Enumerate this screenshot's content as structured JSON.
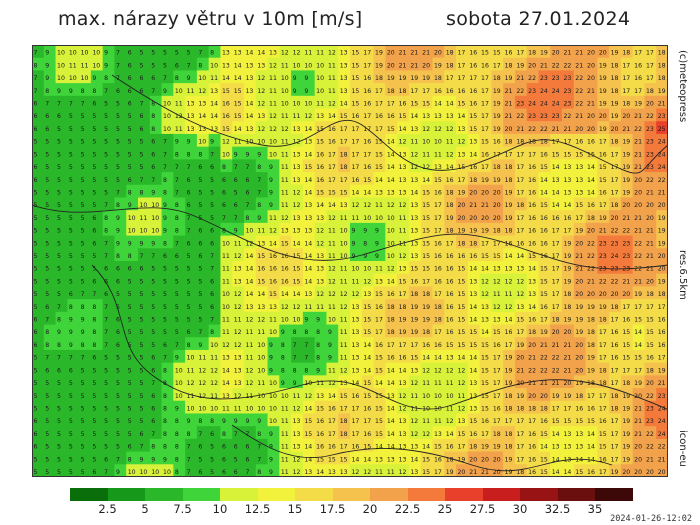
{
  "header": {
    "title": "max. nárazy větru v 10m [m/s]",
    "date": "sobota 27.01.2024"
  },
  "side_labels": {
    "brand": "(c)meteopress",
    "resolution": "res.6.5km",
    "model": "icon-eu"
  },
  "timestamp": "2024-01-26-12:02",
  "legend": {
    "labels": [
      "2.5",
      "5",
      "7.5",
      "10",
      "12.5",
      "15",
      "17.5",
      "20",
      "22.5",
      "25",
      "27.5",
      "30",
      "32.5",
      "35"
    ],
    "colors": [
      "#0a6e0a",
      "#16981a",
      "#2ab82a",
      "#3ed43a",
      "#d8f23a",
      "#f2f23c",
      "#f4dc48",
      "#f5c24e",
      "#f3a24c",
      "#f37a3a",
      "#e8402a",
      "#c81e1e",
      "#981414",
      "#6a0e0e",
      "#3c0808"
    ]
  },
  "map": {
    "type": "gust-field",
    "grid_cols": 54,
    "grid_rows": 34
  }
}
